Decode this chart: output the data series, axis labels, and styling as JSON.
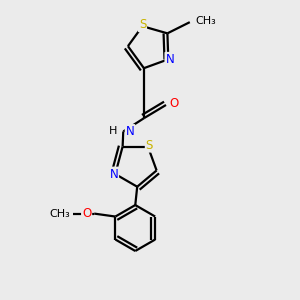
{
  "bg_color": "#ebebeb",
  "bond_color": "#000000",
  "atom_colors": {
    "S": "#c8b400",
    "N": "#0000ff",
    "O": "#ff0000",
    "C": "#000000",
    "H": "#000000"
  },
  "figsize": [
    3.0,
    3.0
  ],
  "dpi": 100,
  "xlim": [
    0,
    10
  ],
  "ylim": [
    0,
    10
  ]
}
